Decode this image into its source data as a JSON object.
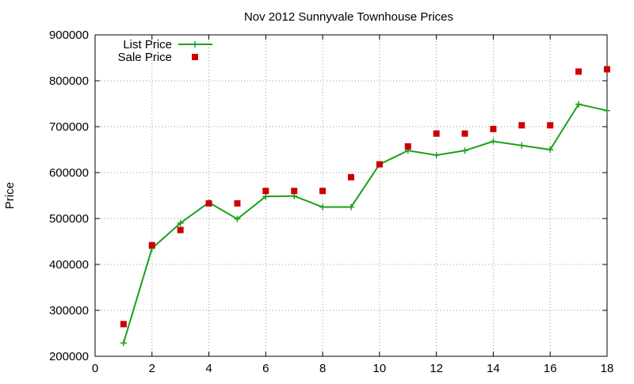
{
  "chart_data": {
    "type": "line",
    "title": "Nov 2012 Sunnyvale Townhouse Prices",
    "xlabel": "",
    "ylabel": "Price",
    "xlim": [
      0,
      18
    ],
    "ylim": [
      200000,
      900000
    ],
    "x_ticks": [
      0,
      2,
      4,
      6,
      8,
      10,
      12,
      14,
      16,
      18
    ],
    "y_ticks": [
      200000,
      300000,
      400000,
      500000,
      600000,
      700000,
      800000,
      900000
    ],
    "grid": true,
    "legend_position": "top-left",
    "series": [
      {
        "name": "List Price",
        "style": "line-with-plus-markers",
        "color": "#1aa01a",
        "x": [
          1,
          2,
          3,
          4,
          5,
          6,
          7,
          8,
          9,
          10,
          11,
          12,
          13,
          14,
          15,
          16,
          17,
          18
        ],
        "values": [
          229000,
          435000,
          490000,
          535000,
          499000,
          548000,
          549000,
          525000,
          525000,
          618000,
          648000,
          638000,
          648000,
          668000,
          659000,
          650000,
          749000,
          735000
        ]
      },
      {
        "name": "Sale Price",
        "style": "square-markers",
        "color": "#cc0000",
        "x": [
          1,
          2,
          3,
          4,
          5,
          6,
          7,
          8,
          9,
          10,
          11,
          12,
          13,
          14,
          15,
          16,
          17,
          18
        ],
        "values": [
          270000,
          442000,
          475000,
          533000,
          533000,
          560000,
          560000,
          560000,
          590000,
          618000,
          657000,
          685000,
          685000,
          695000,
          703000,
          703000,
          820000,
          825000
        ]
      }
    ]
  }
}
